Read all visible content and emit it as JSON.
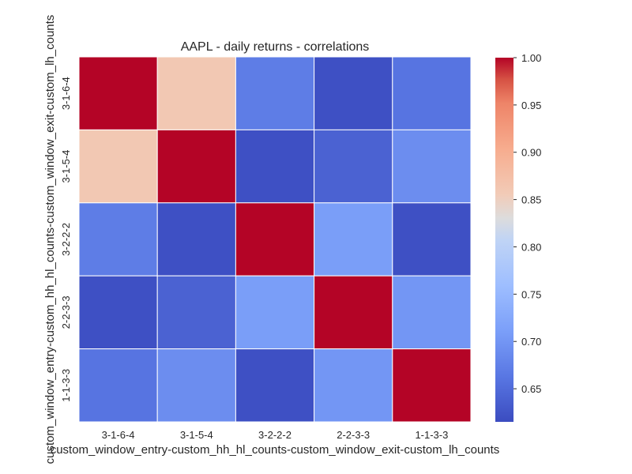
{
  "chart_data": {
    "type": "heatmap",
    "title": "AAPL - daily returns - correlations",
    "xlabel": "custom_window_entry-custom_hh_hl_counts-custom_window_exit-custom_lh_counts",
    "ylabel": "custom_window_entry-custom_hh_hl_counts-custom_window_exit-custom_lh_counts",
    "x_categories": [
      "3-1-6-4",
      "3-1-5-4",
      "3-2-2-2",
      "2-2-3-3",
      "1-1-3-3"
    ],
    "y_categories": [
      "3-1-6-4",
      "3-1-5-4",
      "3-2-2-2",
      "2-2-3-3",
      "1-1-3-3"
    ],
    "values": [
      [
        1.0,
        0.86,
        0.67,
        0.62,
        0.66
      ],
      [
        0.86,
        1.0,
        0.62,
        0.64,
        0.69
      ],
      [
        0.67,
        0.62,
        1.0,
        0.71,
        0.62
      ],
      [
        0.62,
        0.64,
        0.71,
        1.0,
        0.7
      ],
      [
        0.66,
        0.69,
        0.62,
        0.7,
        1.0
      ]
    ],
    "colormap": "coolwarm",
    "vmin": 0.615,
    "vmax": 1.0,
    "colorbar_ticks": [
      0.65,
      0.7,
      0.75,
      0.8,
      0.85,
      0.9,
      0.95,
      1.0
    ],
    "colorbar_tick_labels": [
      "0.65",
      "0.70",
      "0.75",
      "0.80",
      "0.85",
      "0.90",
      "0.95",
      "1.00"
    ],
    "grid": false,
    "cell_border_color": "#ffffff"
  }
}
